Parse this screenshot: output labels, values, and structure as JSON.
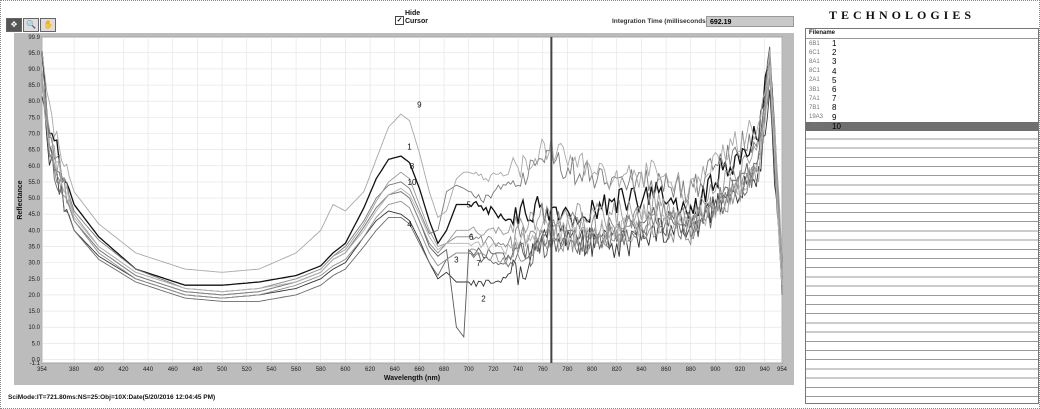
{
  "toolbar": {
    "tools": [
      "✥",
      "🔍",
      "✋"
    ]
  },
  "cursor_toggle": {
    "checked": "✓",
    "label_line1": "Hide",
    "label_line2": "Cursor"
  },
  "integration": {
    "label": "Integration Time (milliseconds)",
    "value": "692.19"
  },
  "brand": {
    "text": "TECHNOLOGIES"
  },
  "status": {
    "text": "SciMode:IT=721.80ms:NS=25:Obj=10X:Date(5/20/2016 12:04:45 PM)"
  },
  "file_list": {
    "header": "Filename",
    "rows": [
      {
        "name": "6B1",
        "num": "1"
      },
      {
        "name": "6C1",
        "num": "2"
      },
      {
        "name": "8A1",
        "num": "3"
      },
      {
        "name": "8C1",
        "num": "4"
      },
      {
        "name": "2A1",
        "num": "5"
      },
      {
        "name": "3B1",
        "num": "6"
      },
      {
        "name": "7A1",
        "num": "7"
      },
      {
        "name": "7B1",
        "num": "8"
      },
      {
        "name": "19A3",
        "num": "9"
      },
      {
        "name": "19C3",
        "num": "10"
      }
    ],
    "selected_index": 9,
    "empty_rows": 28
  },
  "chart_data": {
    "type": "line",
    "xlabel": "Wavelength (nm)",
    "ylabel": "Reflectance",
    "xlim": [
      354,
      954
    ],
    "ylim": [
      -1.1,
      99.9
    ],
    "x_ticks": [
      354,
      380,
      400,
      420,
      440,
      460,
      480,
      500,
      520,
      540,
      560,
      580,
      600,
      620,
      640,
      660,
      680,
      700,
      720,
      740,
      760,
      780,
      800,
      820,
      840,
      860,
      880,
      900,
      920,
      940,
      954
    ],
    "y_ticks": [
      "99.9",
      "95.0",
      "90.0",
      "85.0",
      "80.0",
      "75.0",
      "70.0",
      "65.0",
      "60.0",
      "55.0",
      "50.0",
      "45.0",
      "40.0",
      "35.0",
      "30.0",
      "25.0",
      "20.0",
      "15.0",
      "10.0",
      "5.0",
      "0.0",
      "-1.1"
    ],
    "cursor_x": 767,
    "grid": true,
    "x": [
      354,
      360,
      380,
      400,
      430,
      470,
      500,
      530,
      560,
      580,
      590,
      600,
      615,
      625,
      635,
      645,
      652,
      660,
      668,
      675,
      682,
      690,
      696,
      700,
      712,
      730,
      750,
      767,
      790,
      820,
      850,
      880,
      900,
      920,
      935,
      944,
      950,
      954
    ],
    "series": [
      {
        "name": "1",
        "color": "#111111",
        "values": [
          92,
          72,
          48,
          38,
          28,
          23,
          23,
          24,
          26,
          29,
          33,
          36,
          47,
          56,
          62,
          63,
          61,
          53,
          43,
          36,
          40,
          48,
          48,
          48,
          47,
          44,
          46,
          47,
          44,
          48,
          52,
          45,
          57,
          62,
          70,
          92,
          55,
          30
        ]
      },
      {
        "name": "2",
        "color": "#333333",
        "values": [
          85,
          62,
          40,
          32,
          25,
          20,
          19,
          20,
          22,
          25,
          28,
          30,
          38,
          43,
          46,
          45,
          43,
          37,
          30,
          25,
          27,
          24,
          24,
          24,
          24,
          25,
          30,
          41,
          37,
          35,
          39,
          42,
          47,
          53,
          57,
          80,
          45,
          22
        ]
      },
      {
        "name": "3",
        "color": "#5a5a5a",
        "values": [
          88,
          66,
          43,
          34,
          26,
          21,
          20,
          21,
          24,
          27,
          31,
          33,
          41,
          47,
          51,
          52,
          50,
          43,
          35,
          32,
          34,
          10,
          7,
          34,
          33,
          32,
          34,
          36,
          35,
          40,
          44,
          40,
          47,
          55,
          64,
          96,
          55,
          25
        ]
      },
      {
        "name": "4",
        "color": "#6a6a6a",
        "values": [
          88,
          64,
          40,
          31,
          24,
          19,
          18,
          18,
          20,
          23,
          26,
          28,
          35,
          40,
          44,
          44,
          42,
          36,
          30,
          26,
          31,
          33,
          33,
          33,
          31,
          29,
          33,
          38,
          36,
          38,
          42,
          41,
          46,
          53,
          59,
          90,
          48,
          20
        ]
      },
      {
        "name": "5",
        "color": "#7a7a7a",
        "values": [
          90,
          70,
          46,
          37,
          28,
          22,
          21,
          22,
          25,
          28,
          32,
          35,
          43,
          50,
          54,
          55,
          53,
          46,
          39,
          40,
          52,
          54,
          53,
          52,
          49,
          55,
          58,
          62,
          58,
          56,
          54,
          52,
          60,
          66,
          70,
          92,
          55,
          28
        ]
      },
      {
        "name": "6",
        "color": "#858585",
        "values": [
          86,
          65,
          43,
          34,
          26,
          21,
          20,
          21,
          24,
          27,
          31,
          33,
          41,
          47,
          51,
          52,
          50,
          43,
          36,
          33,
          36,
          38,
          38,
          38,
          37,
          36,
          39,
          43,
          42,
          40,
          45,
          42,
          48,
          55,
          60,
          88,
          52,
          24
        ]
      },
      {
        "name": "7",
        "color": "#909090",
        "values": [
          88,
          66,
          43,
          33,
          25,
          20,
          19,
          20,
          23,
          26,
          29,
          31,
          38,
          44,
          48,
          49,
          47,
          40,
          33,
          29,
          31,
          33,
          33,
          33,
          32,
          31,
          34,
          38,
          37,
          37,
          41,
          40,
          46,
          53,
          59,
          86,
          50,
          22
        ]
      },
      {
        "name": "8",
        "color": "#9a9a9a",
        "values": [
          89,
          68,
          45,
          35,
          27,
          22,
          21,
          22,
          25,
          28,
          32,
          34,
          42,
          49,
          55,
          58,
          56,
          48,
          40,
          35,
          36,
          40,
          40,
          40,
          39,
          40,
          42,
          46,
          44,
          45,
          48,
          45,
          52,
          58,
          64,
          91,
          53,
          26
        ]
      },
      {
        "name": "9",
        "color": "#a8a8a8",
        "values": [
          95,
          76,
          52,
          42,
          33,
          28,
          27,
          28,
          33,
          40,
          48,
          46,
          52,
          62,
          72,
          76,
          74,
          64,
          52,
          44,
          46,
          56,
          58,
          58,
          56,
          58,
          62,
          66,
          60,
          56,
          58,
          52,
          62,
          68,
          72,
          95,
          58,
          30
        ]
      },
      {
        "name": "10",
        "color": "#b4b4b4",
        "values": [
          87,
          66,
          44,
          35,
          27,
          22,
          21,
          22,
          24,
          27,
          31,
          33,
          40,
          46,
          51,
          53,
          51,
          45,
          38,
          34,
          36,
          36,
          36,
          36,
          35,
          34,
          37,
          41,
          39,
          39,
          43,
          41,
          48,
          55,
          61,
          89,
          52,
          23
        ]
      }
    ]
  }
}
